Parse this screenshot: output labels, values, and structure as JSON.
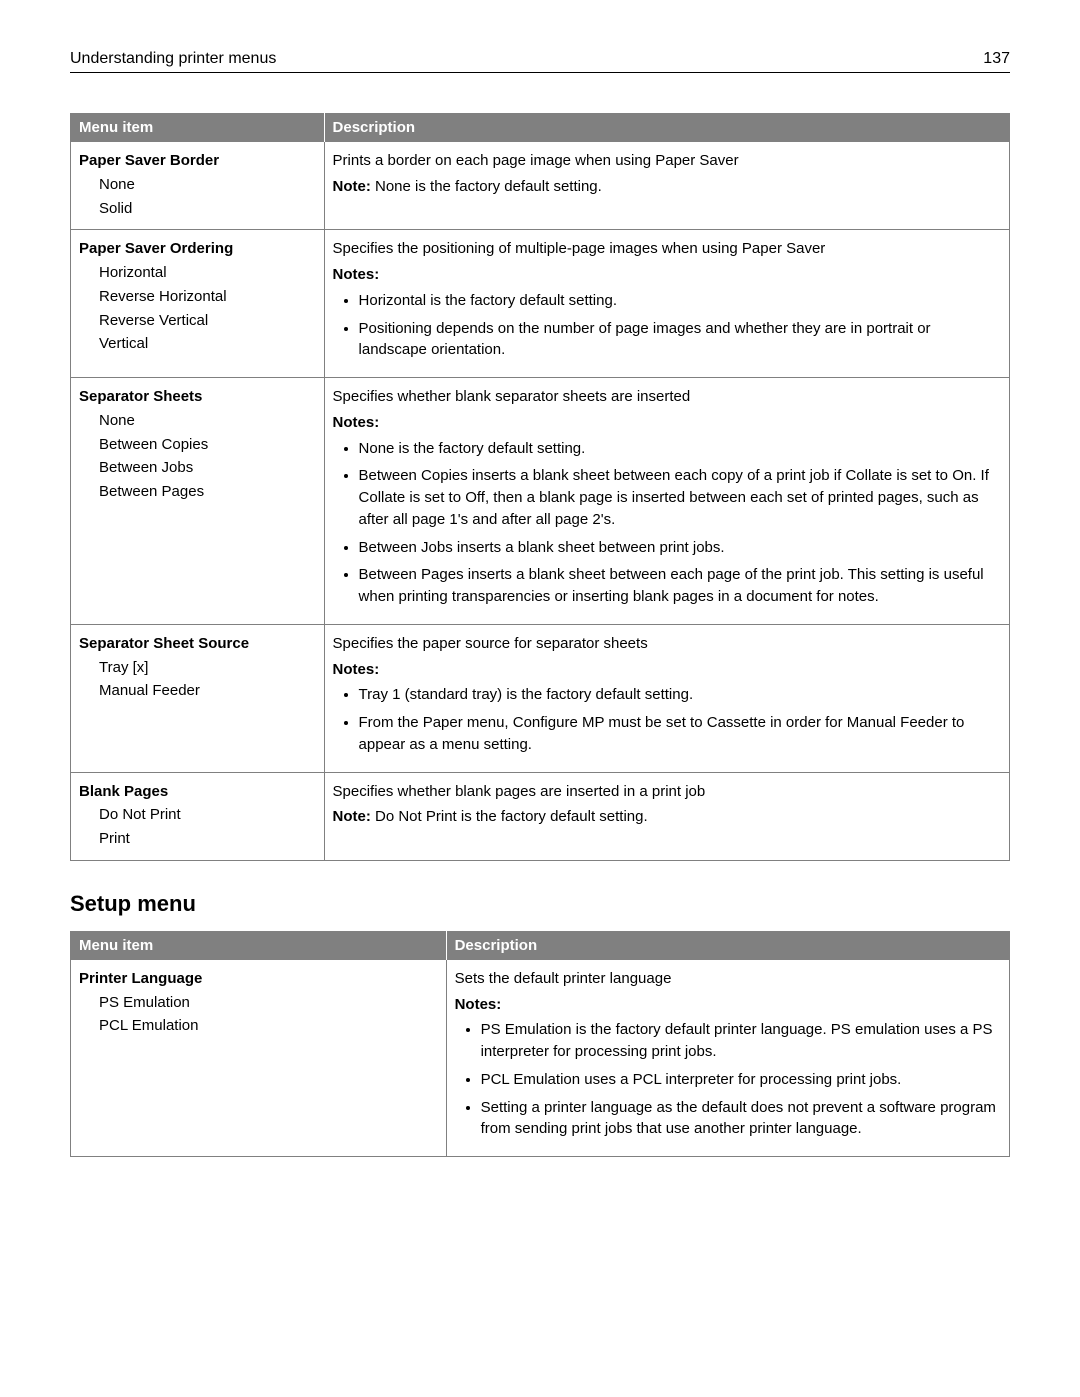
{
  "header": {
    "title": "Understanding printer menus",
    "page": "137"
  },
  "table1": {
    "head": {
      "c1": "Menu item",
      "c2": "Description"
    },
    "rows": [
      {
        "name": "Paper Saver Border",
        "options": [
          "None",
          "Solid"
        ],
        "desc": "Prints a border on each page image when using Paper Saver",
        "note_label": "Note:",
        "note_text": " None is the factory default setting."
      },
      {
        "name": "Paper Saver Ordering",
        "options": [
          "Horizontal",
          "Reverse Horizontal",
          "Reverse Vertical",
          "Vertical"
        ],
        "desc": "Specifies the positioning of multiple-page images when using Paper Saver",
        "notes_label": "Notes:",
        "notes": [
          "Horizontal is the factory default setting.",
          "Positioning depends on the number of page images and whether they are in portrait or landscape orientation."
        ]
      },
      {
        "name": "Separator Sheets",
        "options": [
          "None",
          "Between Copies",
          "Between Jobs",
          "Between Pages"
        ],
        "desc": "Specifies whether blank separator sheets are inserted",
        "notes_label": "Notes:",
        "notes": [
          "None is the factory default setting.",
          "Between Copies inserts a blank sheet between each copy of a print job if Collate is set to On. If Collate is set to Off, then a blank page is inserted between each set of printed pages, such as after all page 1's and after all page 2's.",
          "Between Jobs inserts a blank sheet between print jobs.",
          "Between Pages inserts a blank sheet between each page of the print job. This setting is useful when printing transparencies or inserting blank pages in a document for notes."
        ]
      },
      {
        "name": "Separator Sheet Source",
        "options": [
          "Tray [x]",
          "Manual Feeder"
        ],
        "desc": "Specifies the paper source for separator sheets",
        "notes_label": "Notes:",
        "notes": [
          "Tray 1 (standard tray) is the factory default setting.",
          "From the Paper menu, Configure MP must be set to Cassette in order for Manual Feeder to appear as a menu setting."
        ]
      },
      {
        "name": "Blank Pages",
        "options": [
          "Do Not Print",
          "Print"
        ],
        "desc": "Specifies whether blank pages are inserted in a print job",
        "note_label": "Note:",
        "note_text": " Do Not Print is the factory default setting."
      }
    ]
  },
  "section_title": "Setup menu",
  "table2": {
    "head": {
      "c1": "Menu item",
      "c2": "Description"
    },
    "rows": [
      {
        "name": "Printer Language",
        "options": [
          "PS Emulation",
          "PCL Emulation"
        ],
        "desc": "Sets the default printer language",
        "notes_label": "Notes:",
        "notes": [
          "PS Emulation is the factory default printer language. PS emulation uses a PS interpreter for processing print jobs.",
          "PCL Emulation uses a PCL interpreter for processing print jobs.",
          "Setting a printer language as the default does not prevent a software program from sending print jobs that use another printer language."
        ]
      }
    ]
  }
}
